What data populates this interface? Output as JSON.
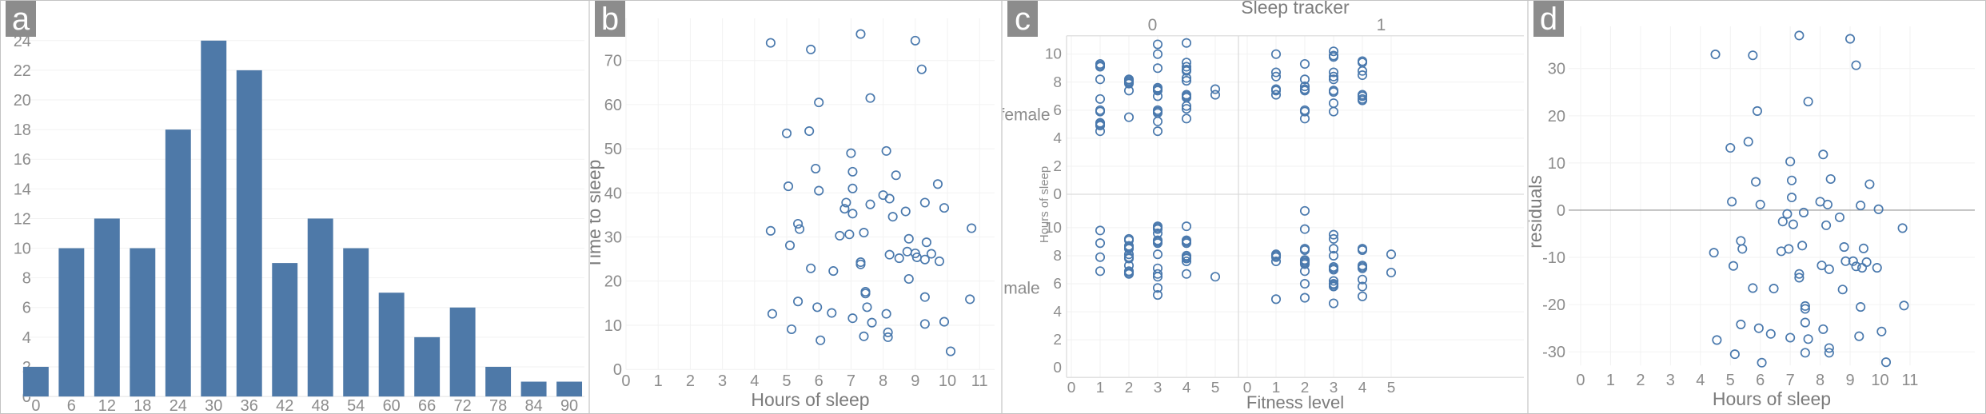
{
  "panels": [
    {
      "label": "a"
    },
    {
      "label": "b"
    },
    {
      "label": "c"
    },
    {
      "label": "d"
    }
  ],
  "colors": {
    "marker": "#4a79ad",
    "bar": "#4e79a8",
    "panel_label_bg": "#8c8c8c",
    "tick_text": "#8c8c8c",
    "axis_title_text": "#7c7c7c",
    "grid": "#f2f2f2",
    "axis_line": "#d9d9d9",
    "zero_line": "#a6a6a6"
  },
  "chart_data": [
    {
      "id": "a",
      "type": "bar",
      "title": "",
      "xlabel": "",
      "ylabel": "",
      "categories": [
        0,
        6,
        12,
        18,
        24,
        30,
        36,
        42,
        48,
        54,
        60,
        66,
        72,
        78,
        84,
        90
      ],
      "values": [
        2,
        10,
        12,
        10,
        18,
        24,
        22,
        9,
        12,
        10,
        7,
        4,
        6,
        2,
        1,
        1
      ],
      "ylim": [
        0,
        24
      ],
      "yticks": [
        0,
        2,
        4,
        6,
        8,
        10,
        12,
        14,
        16,
        18,
        20,
        22,
        24
      ],
      "grid": "horizontal"
    },
    {
      "id": "b",
      "type": "scatter",
      "title": "",
      "xlabel": "Hours of sleep",
      "ylabel": "Time to sleep",
      "xlim": [
        0,
        11
      ],
      "ylim": [
        0,
        78
      ],
      "xticks": [
        0,
        1,
        2,
        3,
        4,
        5,
        6,
        7,
        8,
        9,
        10,
        11
      ],
      "yticks": [
        0,
        10,
        20,
        30,
        40,
        50,
        60,
        70
      ],
      "grid": "both",
      "zero_line": false,
      "points": [
        [
          4.5,
          74
        ],
        [
          5.75,
          72.5
        ],
        [
          7.3,
          76
        ],
        [
          9.0,
          74.5
        ],
        [
          9.2,
          68
        ],
        [
          7.6,
          61.5
        ],
        [
          6.0,
          60.5
        ],
        [
          5.0,
          53.5
        ],
        [
          5.7,
          54
        ],
        [
          7.0,
          49
        ],
        [
          8.1,
          49.5
        ],
        [
          5.9,
          45.5
        ],
        [
          7.05,
          44.8
        ],
        [
          8.4,
          44
        ],
        [
          5.05,
          41.5
        ],
        [
          7.05,
          41
        ],
        [
          6.0,
          40.5
        ],
        [
          8.0,
          39.5
        ],
        [
          9.7,
          42
        ],
        [
          8.2,
          38.7
        ],
        [
          6.85,
          37.8
        ],
        [
          7.6,
          37.4
        ],
        [
          9.3,
          37.8
        ],
        [
          6.8,
          36.4
        ],
        [
          7.05,
          35.3
        ],
        [
          8.7,
          35.8
        ],
        [
          9.9,
          36.6
        ],
        [
          8.3,
          34.6
        ],
        [
          5.35,
          33
        ],
        [
          5.4,
          31.8
        ],
        [
          4.5,
          31.4
        ],
        [
          6.65,
          30.3
        ],
        [
          6.95,
          30.6
        ],
        [
          7.4,
          31
        ],
        [
          10.75,
          32
        ],
        [
          5.1,
          28.1
        ],
        [
          8.8,
          29.6
        ],
        [
          9.35,
          28.8
        ],
        [
          8.2,
          26
        ],
        [
          8.75,
          26.7
        ],
        [
          9.0,
          26.3
        ],
        [
          9.5,
          26.2
        ],
        [
          8.5,
          25.2
        ],
        [
          9.05,
          25.4
        ],
        [
          9.3,
          24.9
        ],
        [
          9.75,
          24.5
        ],
        [
          7.3,
          24.3
        ],
        [
          7.3,
          23.8
        ],
        [
          5.75,
          22.9
        ],
        [
          6.45,
          22.3
        ],
        [
          8.8,
          20.5
        ],
        [
          7.45,
          17.6
        ],
        [
          7.45,
          17.2
        ],
        [
          5.35,
          15.4
        ],
        [
          9.3,
          16.4
        ],
        [
          10.7,
          15.9
        ],
        [
          5.95,
          14.1
        ],
        [
          7.5,
          14.1
        ],
        [
          6.4,
          12.8
        ],
        [
          4.55,
          12.6
        ],
        [
          8.1,
          12.6
        ],
        [
          7.05,
          11.6
        ],
        [
          9.9,
          10.8
        ],
        [
          7.65,
          10.6
        ],
        [
          9.3,
          10.3
        ],
        [
          5.15,
          9.1
        ],
        [
          8.15,
          8.4
        ],
        [
          7.4,
          7.5
        ],
        [
          8.15,
          7.3
        ],
        [
          6.05,
          6.6
        ],
        [
          10.1,
          4.1
        ]
      ]
    },
    {
      "id": "c",
      "type": "facet-scatter",
      "title": "Sleep tracker",
      "xlabel": "Fitness level",
      "ylabel": "Hours of sleep",
      "col_labels": [
        "0",
        "1"
      ],
      "row_labels": [
        "female",
        "male"
      ],
      "xticks": [
        0,
        1,
        2,
        3,
        4,
        5
      ],
      "yticks": [
        0,
        2,
        4,
        6,
        8,
        10
      ],
      "ylim": [
        0,
        11.5
      ],
      "facets": {
        "female_0": [
          [
            1,
            9.3
          ],
          [
            1,
            9.2
          ],
          [
            1,
            9.1
          ],
          [
            1,
            8.2
          ],
          [
            1,
            6.8
          ],
          [
            1,
            6.0
          ],
          [
            1,
            5.9
          ],
          [
            1,
            5.1
          ],
          [
            1,
            5.0
          ],
          [
            1,
            4.9
          ],
          [
            1,
            4.5
          ],
          [
            2,
            8.2
          ],
          [
            2,
            8.1
          ],
          [
            2,
            8.0
          ],
          [
            2,
            7.9
          ],
          [
            2,
            7.4
          ],
          [
            2,
            5.5
          ],
          [
            3,
            10.7
          ],
          [
            3,
            10.0
          ],
          [
            3,
            9.0
          ],
          [
            3,
            7.6
          ],
          [
            3,
            7.5
          ],
          [
            3,
            7.4
          ],
          [
            3,
            7.0
          ],
          [
            3,
            6.0
          ],
          [
            3,
            5.9
          ],
          [
            3,
            5.8
          ],
          [
            3,
            5.2
          ],
          [
            3,
            4.5
          ],
          [
            4,
            10.8
          ],
          [
            4,
            9.4
          ],
          [
            4,
            9.1
          ],
          [
            4,
            8.9
          ],
          [
            4,
            8.8
          ],
          [
            4,
            8.3
          ],
          [
            4,
            8.1
          ],
          [
            4,
            7.1
          ],
          [
            4,
            7.0
          ],
          [
            4,
            6.9
          ],
          [
            4,
            6.3
          ],
          [
            4,
            6.1
          ],
          [
            4,
            5.4
          ],
          [
            5,
            7.5
          ],
          [
            5,
            7.1
          ]
        ],
        "female_1": [
          [
            1,
            10.0
          ],
          [
            1,
            8.7
          ],
          [
            1,
            8.4
          ],
          [
            1,
            7.5
          ],
          [
            1,
            7.4
          ],
          [
            1,
            7.1
          ],
          [
            2,
            9.3
          ],
          [
            2,
            8.2
          ],
          [
            2,
            7.7
          ],
          [
            2,
            7.5
          ],
          [
            2,
            7.4
          ],
          [
            2,
            6.0
          ],
          [
            2,
            5.9
          ],
          [
            2,
            5.4
          ],
          [
            3,
            10.2
          ],
          [
            3,
            9.9
          ],
          [
            3,
            9.8
          ],
          [
            3,
            8.7
          ],
          [
            3,
            8.4
          ],
          [
            3,
            8.2
          ],
          [
            3,
            7.4
          ],
          [
            3,
            7.3
          ],
          [
            3,
            6.5
          ],
          [
            3,
            5.9
          ],
          [
            4,
            9.5
          ],
          [
            4,
            9.4
          ],
          [
            4,
            8.8
          ],
          [
            4,
            8.5
          ],
          [
            4,
            7.1
          ],
          [
            4,
            7.0
          ],
          [
            4,
            6.8
          ],
          [
            4,
            6.7
          ]
        ],
        "male_0": [
          [
            1,
            9.8
          ],
          [
            1,
            8.9
          ],
          [
            1,
            7.9
          ],
          [
            1,
            6.9
          ],
          [
            2,
            9.2
          ],
          [
            2,
            9.1
          ],
          [
            2,
            8.7
          ],
          [
            2,
            8.6
          ],
          [
            2,
            8.5
          ],
          [
            2,
            8.1
          ],
          [
            2,
            7.9
          ],
          [
            2,
            7.8
          ],
          [
            2,
            7.3
          ],
          [
            2,
            6.9
          ],
          [
            2,
            6.8
          ],
          [
            2,
            6.7
          ],
          [
            3,
            10.1
          ],
          [
            3,
            10.0
          ],
          [
            3,
            9.9
          ],
          [
            3,
            9.6
          ],
          [
            3,
            9.1
          ],
          [
            3,
            9.0
          ],
          [
            3,
            8.9
          ],
          [
            3,
            8.1
          ],
          [
            3,
            7.1
          ],
          [
            3,
            6.7
          ],
          [
            3,
            6.5
          ],
          [
            3,
            5.7
          ],
          [
            3,
            5.2
          ],
          [
            4,
            10.1
          ],
          [
            4,
            9.1
          ],
          [
            4,
            9.0
          ],
          [
            4,
            8.9
          ],
          [
            4,
            8.0
          ],
          [
            4,
            7.9
          ],
          [
            4,
            7.8
          ],
          [
            4,
            7.6
          ],
          [
            4,
            6.7
          ],
          [
            5,
            6.5
          ]
        ],
        "male_1": [
          [
            1,
            8.1
          ],
          [
            1,
            8.0
          ],
          [
            1,
            7.9
          ],
          [
            1,
            7.6
          ],
          [
            1,
            4.9
          ],
          [
            2,
            11.2
          ],
          [
            2,
            9.9
          ],
          [
            2,
            8.5
          ],
          [
            2,
            8.4
          ],
          [
            2,
            7.7
          ],
          [
            2,
            7.6
          ],
          [
            2,
            7.5
          ],
          [
            2,
            7.4
          ],
          [
            2,
            6.9
          ],
          [
            2,
            6.0
          ],
          [
            2,
            5.0
          ],
          [
            3,
            9.5
          ],
          [
            3,
            9.2
          ],
          [
            3,
            8.5
          ],
          [
            3,
            8.0
          ],
          [
            3,
            7.2
          ],
          [
            3,
            7.1
          ],
          [
            3,
            7.0
          ],
          [
            3,
            6.2
          ],
          [
            3,
            6.0
          ],
          [
            3,
            5.9
          ],
          [
            3,
            5.8
          ],
          [
            3,
            4.6
          ],
          [
            4,
            8.5
          ],
          [
            4,
            8.4
          ],
          [
            4,
            7.3
          ],
          [
            4,
            7.2
          ],
          [
            4,
            7.1
          ],
          [
            4,
            6.3
          ],
          [
            4,
            5.8
          ],
          [
            4,
            5.1
          ],
          [
            5,
            8.1
          ],
          [
            5,
            6.8
          ]
        ]
      }
    },
    {
      "id": "d",
      "type": "scatter",
      "title": "",
      "xlabel": "Hours of sleep",
      "ylabel": "residuals",
      "xlim": [
        0,
        11
      ],
      "ylim": [
        -36,
        39
      ],
      "xticks": [
        0,
        1,
        2,
        3,
        4,
        5,
        6,
        7,
        8,
        9,
        10,
        11
      ],
      "yticks": [
        -30,
        -20,
        -10,
        0,
        10,
        20,
        30
      ],
      "grid": "both",
      "zero_line": true,
      "points": [
        [
          7.3,
          37
        ],
        [
          9.0,
          36.3
        ],
        [
          4.5,
          33
        ],
        [
          5.75,
          32.8
        ],
        [
          9.2,
          30.7
        ],
        [
          7.6,
          23
        ],
        [
          5.9,
          21
        ],
        [
          5.6,
          14.5
        ],
        [
          5.0,
          13.2
        ],
        [
          8.1,
          11.8
        ],
        [
          7.0,
          10.3
        ],
        [
          8.35,
          6.6
        ],
        [
          7.05,
          6.3
        ],
        [
          5.85,
          6
        ],
        [
          9.65,
          5.5
        ],
        [
          7.05,
          2.7
        ],
        [
          5.05,
          1.8
        ],
        [
          8.0,
          1.8
        ],
        [
          6.0,
          1.2
        ],
        [
          8.25,
          1.2
        ],
        [
          9.35,
          1.0
        ],
        [
          9.95,
          0.2
        ],
        [
          7.45,
          -0.5
        ],
        [
          6.9,
          -0.8
        ],
        [
          8.65,
          -1.5
        ],
        [
          6.75,
          -2.4
        ],
        [
          7.1,
          -3.0
        ],
        [
          8.2,
          -3.2
        ],
        [
          10.75,
          -3.8
        ],
        [
          5.35,
          -6.5
        ],
        [
          7.4,
          -7.5
        ],
        [
          8.8,
          -7.8
        ],
        [
          9.45,
          -8.1
        ],
        [
          5.4,
          -8.2
        ],
        [
          6.95,
          -8.2
        ],
        [
          6.7,
          -8.7
        ],
        [
          4.45,
          -9.0
        ],
        [
          8.85,
          -10.8
        ],
        [
          9.1,
          -10.8
        ],
        [
          9.55,
          -11.0
        ],
        [
          5.1,
          -11.8
        ],
        [
          8.05,
          -11.7
        ],
        [
          9.2,
          -11.9
        ],
        [
          9.4,
          -12.2
        ],
        [
          9.9,
          -12.2
        ],
        [
          8.3,
          -12.5
        ],
        [
          7.3,
          -13.5
        ],
        [
          7.3,
          -14.3
        ],
        [
          5.75,
          -16.5
        ],
        [
          6.45,
          -16.6
        ],
        [
          8.75,
          -16.8
        ],
        [
          7.5,
          -20.3
        ],
        [
          7.5,
          -20.9
        ],
        [
          9.35,
          -20.5
        ],
        [
          10.8,
          -20.2
        ],
        [
          5.35,
          -24.2
        ],
        [
          7.5,
          -23.8
        ],
        [
          5.95,
          -25.0
        ],
        [
          8.1,
          -25.2
        ],
        [
          10.05,
          -25.7
        ],
        [
          6.35,
          -26.2
        ],
        [
          9.3,
          -26.7
        ],
        [
          7.0,
          -27.0
        ],
        [
          7.6,
          -27.3
        ],
        [
          4.55,
          -27.5
        ],
        [
          8.3,
          -29.2
        ],
        [
          7.5,
          -30.2
        ],
        [
          8.3,
          -30.2
        ],
        [
          5.15,
          -30.5
        ],
        [
          6.05,
          -32.3
        ],
        [
          10.2,
          -32.2
        ]
      ]
    }
  ]
}
